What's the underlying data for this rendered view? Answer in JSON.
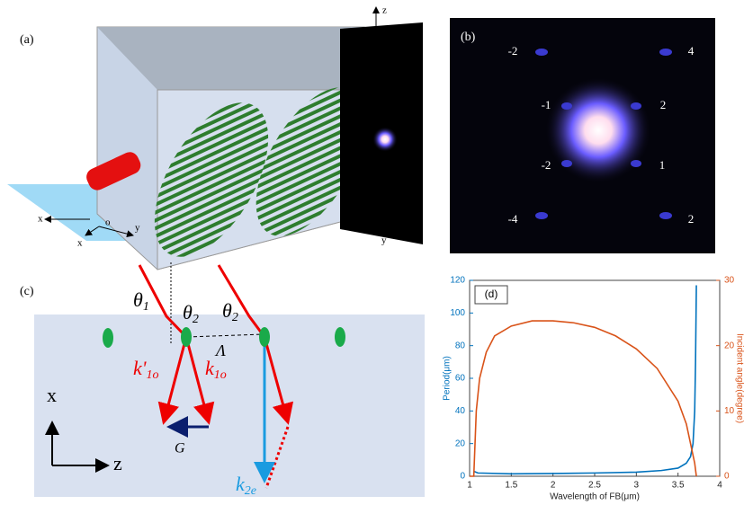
{
  "panel_a": {
    "label": "(a)",
    "axis_labels": [
      "z",
      "x",
      "o",
      "x",
      "y",
      "y"
    ]
  },
  "panel_b": {
    "label": "(b)",
    "orders": [
      "-2",
      "4",
      "-1",
      "2",
      "-2",
      "1",
      "-4",
      "2"
    ]
  },
  "panel_c": {
    "label": "(c)",
    "theta1": {
      "base": "θ",
      "sub": "1"
    },
    "theta2a": {
      "base": "θ",
      "sub": "2"
    },
    "theta2b": {
      "base": "θ",
      "sub": "2"
    },
    "lambda": "Λ",
    "k_prime": {
      "base": "k'",
      "sub": "1o"
    },
    "k1o": {
      "base": "k",
      "sub": "1o"
    },
    "G": "G",
    "k2e": {
      "base": "k",
      "sub": "2e"
    },
    "x": "x",
    "z": "z"
  },
  "chart_data": {
    "type": "line",
    "label": "(d)",
    "xlabel": "Wavelength of FB(μm)",
    "ylabel": "Period(μm)",
    "y2label": "Incident angle(degree)",
    "xlim": [
      1,
      4
    ],
    "xticks": [
      1,
      1.5,
      2,
      2.5,
      3,
      3.5,
      4
    ],
    "ylim": [
      0,
      120
    ],
    "yticks": [
      0,
      20,
      40,
      60,
      80,
      100,
      120
    ],
    "y2lim": [
      0,
      30
    ],
    "y2ticks": [
      0,
      10,
      20,
      30
    ],
    "series": [
      {
        "color": "#0072bd",
        "x": [
          1.05,
          1.1,
          1.5,
          2,
          2.5,
          3,
          3.3,
          3.5,
          3.6,
          3.65,
          3.68,
          3.7,
          3.71,
          3.72
        ],
        "values": [
          3,
          2,
          1.5,
          1.7,
          2,
          2.5,
          3.5,
          5,
          8,
          12,
          20,
          40,
          70,
          117
        ]
      },
      {
        "color": "#d95319",
        "axis": "y2",
        "x": [
          1,
          1.05,
          1.08,
          1.12,
          1.2,
          1.3,
          1.5,
          1.75,
          2,
          2.25,
          2.5,
          2.75,
          3,
          3.25,
          3.5,
          3.6,
          3.7,
          3.72
        ],
        "values": [
          0,
          0,
          10,
          15,
          19,
          21.5,
          23,
          23.8,
          23.8,
          23.5,
          22.8,
          21.5,
          19.5,
          16.5,
          11.5,
          8,
          2,
          0
        ]
      }
    ]
  }
}
